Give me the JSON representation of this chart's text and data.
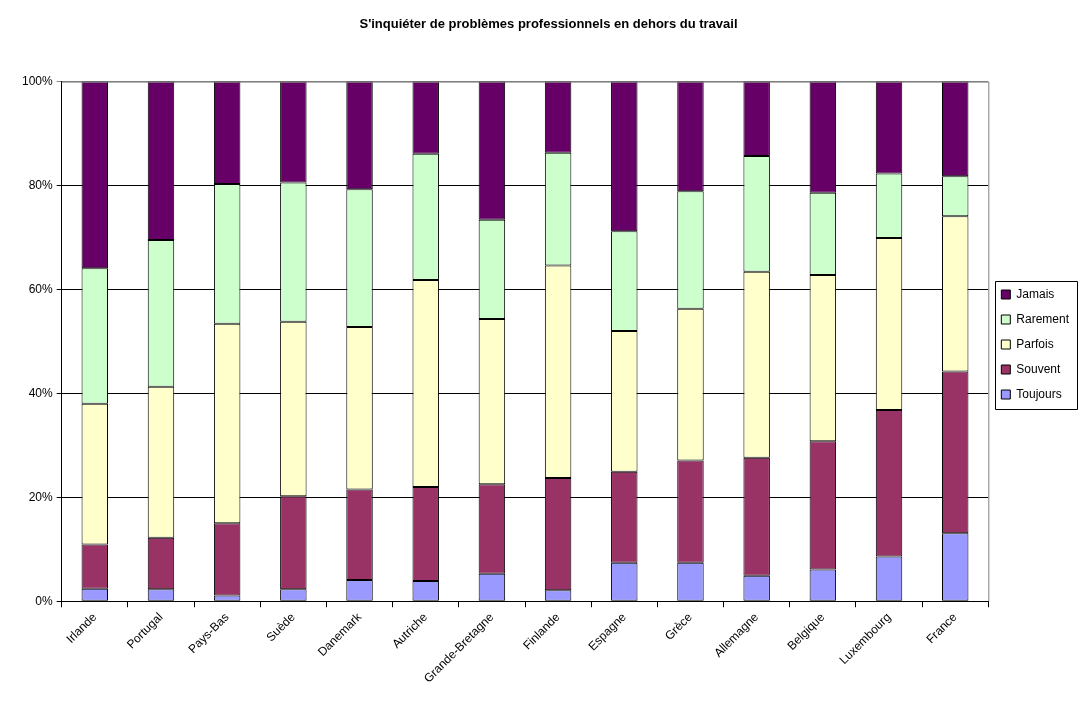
{
  "chart_data": {
    "type": "bar",
    "title": "S'inquiéter de problèmes professionnels en dehors du travail",
    "categories": [
      "Irlande",
      "Portugal",
      "Pays-Bas",
      "Suède",
      "Danemark",
      "Autriche",
      "Grande-Bretagne",
      "Finlande",
      "Espagne",
      "Grèce",
      "Allemagne",
      "Belgique",
      "Luxembourg",
      "France"
    ],
    "series": [
      {
        "name": "Toujours",
        "color": "#9999ff",
        "values": [
          2.4,
          2.3,
          1.1,
          2.3,
          4.1,
          3.9,
          5.3,
          2.1,
          7.4,
          7.4,
          4.9,
          6.1,
          8.6,
          13.1
        ]
      },
      {
        "name": "Souvent",
        "color": "#993366",
        "values": [
          8.5,
          9.9,
          13.9,
          17.9,
          17.4,
          18.1,
          17.2,
          21.6,
          17.5,
          19.7,
          22.7,
          24.7,
          28.2,
          31.1
        ]
      },
      {
        "name": "Parfois",
        "color": "#ffffcc",
        "values": [
          27.1,
          29.1,
          38.4,
          33.6,
          31.3,
          39.8,
          31.8,
          40.9,
          27.1,
          29.2,
          35.8,
          32.0,
          33.1,
          29.9
        ]
      },
      {
        "name": "Rarement",
        "color": "#ccffcc",
        "values": [
          26.1,
          28.2,
          26.9,
          26.8,
          26.5,
          24.3,
          19.1,
          21.7,
          19.2,
          22.6,
          22.3,
          15.8,
          12.4,
          7.7
        ]
      },
      {
        "name": "Jamais",
        "color": "#660066",
        "values": [
          35.9,
          30.5,
          19.7,
          19.4,
          20.7,
          13.9,
          26.6,
          13.7,
          28.8,
          21.1,
          14.3,
          21.4,
          17.7,
          18.2
        ]
      }
    ],
    "stacked": true,
    "ylim": [
      0,
      100
    ],
    "yticks": [
      {
        "value": 0,
        "label": "0%"
      },
      {
        "value": 20,
        "label": "20%"
      },
      {
        "value": 40,
        "label": "40%"
      },
      {
        "value": 60,
        "label": "60%"
      },
      {
        "value": 80,
        "label": "80%"
      },
      {
        "value": 100,
        "label": "100%"
      }
    ],
    "grid": "y",
    "legend": "right"
  }
}
